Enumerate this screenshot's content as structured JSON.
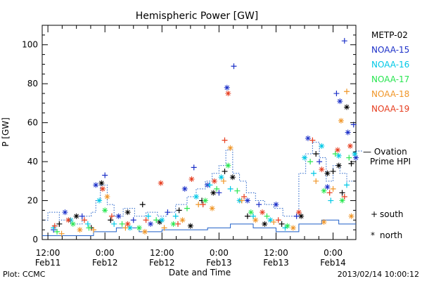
{
  "chart_data": {
    "type": "scatter",
    "title": "Hemispheric Power [GW]",
    "xlabel": "Date and Time",
    "ylabel": "P [GW]",
    "ylim": [
      0,
      110
    ],
    "xlim": [
      -0.05,
      2.7
    ],
    "x_ticks": [
      {
        "x": 0.0,
        "line1": "12:00",
        "line2": "Feb11"
      },
      {
        "x": 0.5,
        "line1": "0:00",
        "line2": "Feb12"
      },
      {
        "x": 1.0,
        "line1": "12:00",
        "line2": "Feb12"
      },
      {
        "x": 1.5,
        "line1": "0:00",
        "line2": "Feb13"
      },
      {
        "x": 2.0,
        "line1": "12:00",
        "line2": "Feb13"
      },
      {
        "x": 2.5,
        "line1": "0:00",
        "line2": "Feb14"
      }
    ],
    "x_minor_per_major": 4,
    "y_ticks": [
      0,
      20,
      40,
      60,
      80,
      100
    ],
    "y_minor_step": 5,
    "grid": false,
    "legend_position": "right",
    "series": [
      {
        "name": "METP-02",
        "color": "#000000",
        "points": [
          [
            0.1,
            8
          ],
          [
            0.25,
            12
          ],
          [
            0.38,
            6
          ],
          [
            0.47,
            29
          ],
          [
            0.55,
            10
          ],
          [
            0.7,
            14
          ],
          [
            0.83,
            18
          ],
          [
            0.98,
            9
          ],
          [
            1.15,
            15
          ],
          [
            1.25,
            7
          ],
          [
            1.35,
            20
          ],
          [
            1.45,
            24
          ],
          [
            1.55,
            35
          ],
          [
            1.62,
            32
          ],
          [
            1.75,
            12
          ],
          [
            1.9,
            8
          ],
          [
            2.05,
            8
          ],
          [
            2.22,
            12
          ],
          [
            2.35,
            44
          ],
          [
            2.45,
            34
          ],
          [
            2.5,
            35
          ],
          [
            2.55,
            38
          ],
          [
            2.58,
            24
          ],
          [
            2.62,
            68
          ],
          [
            2.66,
            39
          ]
        ]
      },
      {
        "name": "NOAA-15",
        "color": "#1c30c8",
        "points": [
          [
            0.05,
            5
          ],
          [
            0.15,
            14
          ],
          [
            0.3,
            12
          ],
          [
            0.42,
            28
          ],
          [
            0.5,
            33
          ],
          [
            0.62,
            12
          ],
          [
            0.75,
            10
          ],
          [
            0.9,
            8
          ],
          [
            1.05,
            14
          ],
          [
            1.2,
            26
          ],
          [
            1.28,
            37
          ],
          [
            1.4,
            28
          ],
          [
            1.5,
            24
          ],
          [
            1.57,
            78
          ],
          [
            1.63,
            89
          ],
          [
            1.75,
            20
          ],
          [
            1.85,
            18
          ],
          [
            2.0,
            18
          ],
          [
            2.18,
            12
          ],
          [
            2.28,
            52
          ],
          [
            2.38,
            40
          ],
          [
            2.45,
            27
          ],
          [
            2.53,
            75
          ],
          [
            2.56,
            71
          ],
          [
            2.6,
            102
          ],
          [
            2.63,
            55
          ],
          [
            2.68,
            59
          ],
          [
            2.7,
            42
          ]
        ]
      },
      {
        "name": "NOAA-16",
        "color": "#00c8e6",
        "points": [
          [
            0.05,
            6
          ],
          [
            0.2,
            10
          ],
          [
            0.35,
            8
          ],
          [
            0.45,
            20
          ],
          [
            0.58,
            8
          ],
          [
            0.72,
            6
          ],
          [
            0.88,
            12
          ],
          [
            1.0,
            10
          ],
          [
            1.12,
            12
          ],
          [
            1.3,
            22
          ],
          [
            1.42,
            28
          ],
          [
            1.52,
            32
          ],
          [
            1.6,
            26
          ],
          [
            1.68,
            20
          ],
          [
            1.8,
            12
          ],
          [
            1.95,
            10
          ],
          [
            2.08,
            6
          ],
          [
            2.25,
            42
          ],
          [
            2.33,
            34
          ],
          [
            2.4,
            48
          ],
          [
            2.48,
            20
          ],
          [
            2.55,
            43
          ],
          [
            2.62,
            28
          ],
          [
            2.69,
            44
          ]
        ]
      },
      {
        "name": "NOAA-17",
        "color": "#28e650",
        "points": [
          [
            0.08,
            4
          ],
          [
            0.22,
            8
          ],
          [
            0.36,
            6
          ],
          [
            0.5,
            15
          ],
          [
            0.65,
            8
          ],
          [
            0.8,
            6
          ],
          [
            0.95,
            10
          ],
          [
            1.1,
            8
          ],
          [
            1.22,
            16
          ],
          [
            1.38,
            20
          ],
          [
            1.48,
            26
          ],
          [
            1.58,
            38
          ],
          [
            1.66,
            25
          ],
          [
            1.78,
            14
          ],
          [
            1.92,
            12
          ],
          [
            2.1,
            7
          ],
          [
            2.3,
            40
          ],
          [
            2.42,
            25
          ],
          [
            2.52,
            44
          ],
          [
            2.58,
            20
          ],
          [
            2.64,
            42
          ]
        ]
      },
      {
        "name": "NOAA-18",
        "color": "#f09628",
        "points": [
          [
            0.12,
            3
          ],
          [
            0.28,
            5
          ],
          [
            0.4,
            5
          ],
          [
            0.52,
            22
          ],
          [
            0.68,
            6
          ],
          [
            0.85,
            4
          ],
          [
            1.02,
            6
          ],
          [
            1.18,
            10
          ],
          [
            1.32,
            18
          ],
          [
            1.44,
            16
          ],
          [
            1.54,
            30
          ],
          [
            1.6,
            47
          ],
          [
            1.7,
            20
          ],
          [
            1.82,
            10
          ],
          [
            1.98,
            9
          ],
          [
            2.15,
            6
          ],
          [
            2.35,
            30
          ],
          [
            2.42,
            9
          ],
          [
            2.5,
            26
          ],
          [
            2.57,
            61
          ],
          [
            2.62,
            76
          ],
          [
            2.66,
            12
          ]
        ]
      },
      {
        "name": "NOAA-19",
        "color": "#e63c1e",
        "points": [
          [
            0.06,
            7
          ],
          [
            0.18,
            10
          ],
          [
            0.32,
            10
          ],
          [
            0.48,
            26
          ],
          [
            0.56,
            12
          ],
          [
            0.7,
            8
          ],
          [
            0.86,
            10
          ],
          [
            0.99,
            29
          ],
          [
            1.14,
            8
          ],
          [
            1.26,
            31
          ],
          [
            1.36,
            18
          ],
          [
            1.46,
            30
          ],
          [
            1.55,
            51
          ],
          [
            1.58,
            75
          ],
          [
            1.72,
            22
          ],
          [
            1.88,
            14
          ],
          [
            2.02,
            10
          ],
          [
            2.2,
            14
          ],
          [
            2.32,
            51
          ],
          [
            2.4,
            36
          ],
          [
            2.47,
            24
          ],
          [
            2.54,
            46
          ],
          [
            2.6,
            22
          ],
          [
            2.65,
            48
          ]
        ]
      }
    ],
    "ovation": {
      "name": "Ovation Prime HPI",
      "legend_line1": "— Ovation",
      "legend_line2": "Prime HPI",
      "color": "#1f5fc8",
      "steps": [
        [
          -0.05,
          10
        ],
        [
          0.0,
          14
        ],
        [
          0.1,
          10
        ],
        [
          0.2,
          8
        ],
        [
          0.3,
          12
        ],
        [
          0.38,
          14
        ],
        [
          0.42,
          20
        ],
        [
          0.46,
          28
        ],
        [
          0.52,
          18
        ],
        [
          0.58,
          12
        ],
        [
          0.66,
          16
        ],
        [
          0.76,
          12
        ],
        [
          0.86,
          14
        ],
        [
          0.96,
          12
        ],
        [
          1.04,
          14
        ],
        [
          1.12,
          18
        ],
        [
          1.22,
          22
        ],
        [
          1.3,
          26
        ],
        [
          1.38,
          30
        ],
        [
          1.44,
          34
        ],
        [
          1.5,
          38
        ],
        [
          1.56,
          46
        ],
        [
          1.62,
          34
        ],
        [
          1.68,
          30
        ],
        [
          1.74,
          24
        ],
        [
          1.82,
          20
        ],
        [
          1.9,
          18
        ],
        [
          1.98,
          16
        ],
        [
          2.06,
          12
        ],
        [
          2.14,
          12
        ],
        [
          2.2,
          34
        ],
        [
          2.26,
          44
        ],
        [
          2.32,
          50
        ],
        [
          2.38,
          42
        ],
        [
          2.44,
          30
        ],
        [
          2.5,
          38
        ],
        [
          2.56,
          34
        ],
        [
          2.62,
          30
        ],
        [
          2.7,
          30
        ]
      ],
      "base": [
        [
          -0.05,
          2
        ],
        [
          0.2,
          2
        ],
        [
          0.4,
          4
        ],
        [
          0.6,
          6
        ],
        [
          0.8,
          4
        ],
        [
          1.0,
          5
        ],
        [
          1.2,
          5
        ],
        [
          1.4,
          6
        ],
        [
          1.6,
          8
        ],
        [
          1.8,
          6
        ],
        [
          2.0,
          4
        ],
        [
          2.2,
          8
        ],
        [
          2.4,
          10
        ],
        [
          2.55,
          8
        ],
        [
          2.7,
          8
        ]
      ]
    },
    "symbol_legend": [
      {
        "symbol": "+",
        "label": "south"
      },
      {
        "symbol": "*",
        "label": "north"
      }
    ]
  },
  "footer": {
    "plot_credit": "Plot: CCMC",
    "timestamp": "2013/02/14 10:00:12"
  }
}
